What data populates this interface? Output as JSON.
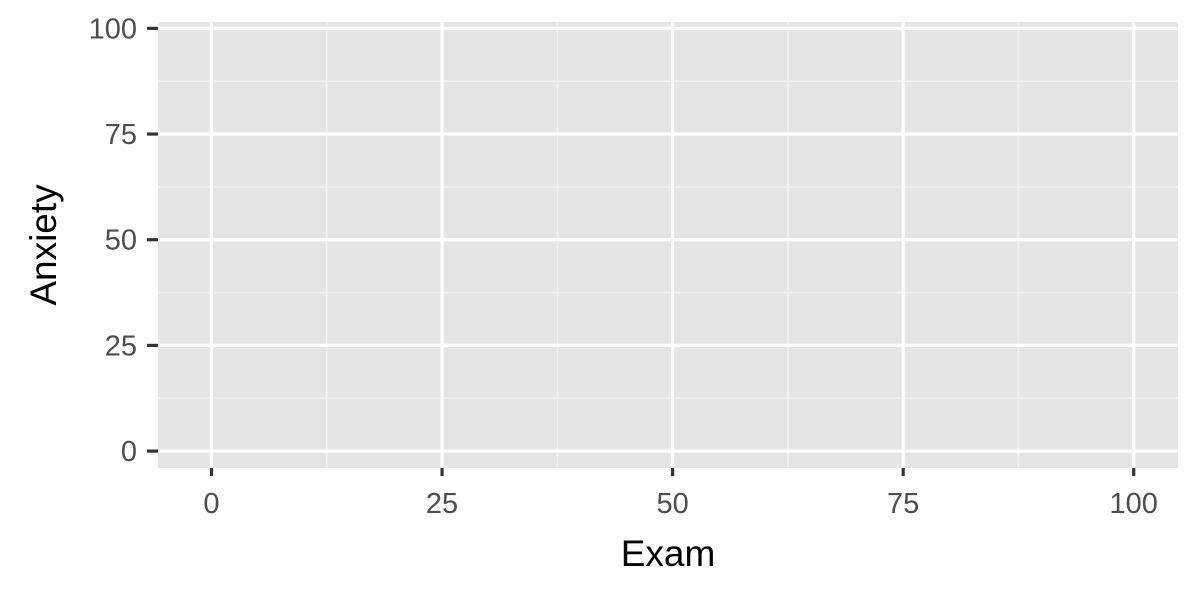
{
  "chart_data": {
    "type": "scatter",
    "title": "",
    "xlabel": "Exam",
    "ylabel": "Anxiety",
    "xlim": [
      -5.8,
      104.8
    ],
    "ylim": [
      -4,
      101.5
    ],
    "x_ticks": [
      0,
      25,
      50,
      75,
      100
    ],
    "y_ticks": [
      0,
      25,
      50,
      75,
      100
    ],
    "x_tick_labels": [
      "0",
      "25",
      "50",
      "75",
      "100"
    ],
    "y_tick_labels": [
      "0",
      "25",
      "50",
      "75",
      "100"
    ],
    "points": [],
    "grid": true,
    "legend": "none",
    "colors": {
      "panel_background": "#e5e5e5",
      "grid_major": "#ffffff",
      "grid_minor": "#f2f2f2",
      "tick_mark": "#333333",
      "tick_label": "#4d4d4d",
      "axis_title": "#000000"
    }
  }
}
